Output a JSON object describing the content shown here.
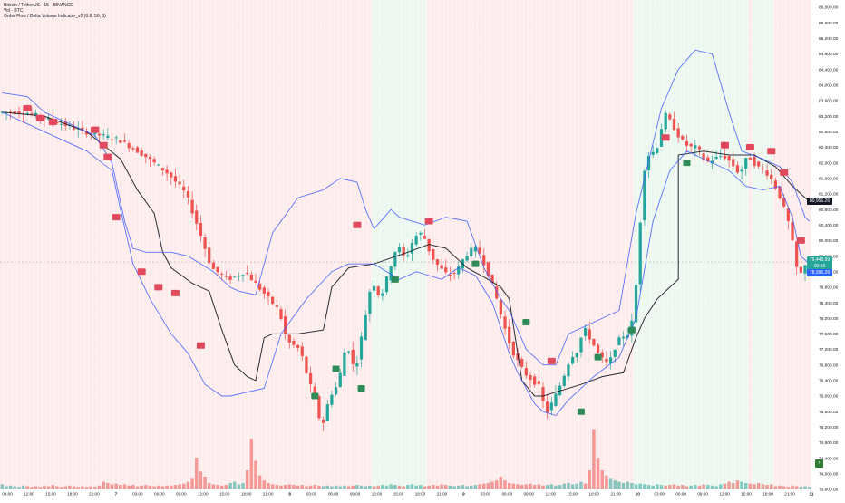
{
  "header": {
    "symbol_line": "Bitcoin / TetherUS · 15 · BINANCE",
    "volume_line": "Vol · BTC",
    "indicator_line": "Order Flow / Delta Volume Indicator_v2 (0.8, 50, 5)"
  },
  "price_tags": {
    "vwap": "80,956.26",
    "last_price": "79,448.99",
    "last_countdown": "00:56",
    "lower_band": "78,996.26"
  },
  "colors": {
    "up": "#26a69a",
    "down": "#ef5350",
    "vwap_line": "#131722",
    "band_line": "#3d5afe",
    "bg_red": "#fde4e4",
    "bg_green": "#e4f4ea",
    "sell_marker": "#e04a5c",
    "buy_marker": "#2e8b57",
    "axis_text": "#131722",
    "grid": "#f0f3fa"
  },
  "chart_data": {
    "type": "candlestick",
    "title": "Bitcoin / TetherUS · 15 · BINANCE",
    "xlabel": "",
    "ylabel": "",
    "y_ticks": [
      "86,000.00",
      "85,600.00",
      "85,200.00",
      "84,800.00",
      "84,400.00",
      "84,000.00",
      "83,600.00",
      "83,200.00",
      "82,800.00",
      "82,400.00",
      "82,000.00",
      "81,600.00",
      "81,200.00",
      "80,800.00",
      "80,400.00",
      "80,000.00",
      "79,600.00",
      "79,200.00",
      "78,800.00",
      "78,400.00",
      "78,000.00",
      "77,600.00",
      "77,200.00",
      "76,800.00",
      "76,400.00",
      "76,000.00",
      "75,600.00",
      "75,200.00",
      "74,800.00",
      "74,400.00",
      "74,000.00",
      "73,600.00"
    ],
    "ylim": [
      73600,
      86000
    ],
    "x_ticks": [
      "09:00",
      "12:00",
      "15:00",
      "18:00",
      "21:00",
      "7",
      "03:00",
      "06:00",
      "09:00",
      "12:00",
      "15:00",
      "18:00",
      "21:00",
      "8",
      "03:00",
      "06:00",
      "09:00",
      "12:00",
      "15:00",
      "18:00",
      "21:00",
      "9",
      "03:00",
      "06:00",
      "09:00",
      "12:00",
      "15:00",
      "18:00",
      "21:00",
      "10",
      "03:00",
      "06:00",
      "09:00",
      "12:00",
      "15:00",
      "18:00",
      "21:00",
      "11"
    ],
    "series": [
      {
        "name": "Price",
        "kind": "close_path",
        "points": [
          [
            0,
            83300
          ],
          [
            6,
            83300
          ],
          [
            12,
            83100
          ],
          [
            20,
            82800
          ],
          [
            28,
            82600
          ],
          [
            34,
            82200
          ],
          [
            40,
            81700
          ],
          [
            44,
            81200
          ],
          [
            47,
            80300
          ],
          [
            50,
            79300
          ],
          [
            54,
            79000
          ],
          [
            58,
            79200
          ],
          [
            62,
            78700
          ],
          [
            66,
            78200
          ],
          [
            68,
            77400
          ],
          [
            71,
            77200
          ],
          [
            73,
            76400
          ],
          [
            75,
            75800
          ],
          [
            76,
            75100
          ],
          [
            78,
            76000
          ],
          [
            80,
            76300
          ],
          [
            82,
            77400
          ],
          [
            84,
            76600
          ],
          [
            86,
            77800
          ],
          [
            88,
            79000
          ],
          [
            90,
            78500
          ],
          [
            92,
            79200
          ],
          [
            94,
            79900
          ],
          [
            96,
            79500
          ],
          [
            98,
            80100
          ],
          [
            100,
            80200
          ],
          [
            102,
            79600
          ],
          [
            104,
            79300
          ],
          [
            106,
            79100
          ],
          [
            108,
            79200
          ],
          [
            110,
            79600
          ],
          [
            112,
            79800
          ],
          [
            113,
            79800
          ],
          [
            115,
            79300
          ],
          [
            117,
            78700
          ],
          [
            119,
            77900
          ],
          [
            121,
            77200
          ],
          [
            123,
            76800
          ],
          [
            124,
            76600
          ],
          [
            126,
            76400
          ],
          [
            128,
            76200
          ],
          [
            129,
            75500
          ],
          [
            131,
            75900
          ],
          [
            133,
            76400
          ],
          [
            135,
            77000
          ],
          [
            137,
            77200
          ],
          [
            138,
            77800
          ],
          [
            140,
            77400
          ],
          [
            142,
            77000
          ],
          [
            144,
            76800
          ],
          [
            146,
            77400
          ],
          [
            148,
            77600
          ],
          [
            149,
            77600
          ],
          [
            150,
            78200
          ],
          [
            151,
            79500
          ],
          [
            152,
            81500
          ],
          [
            153,
            82200
          ],
          [
            154,
            82200
          ],
          [
            156,
            82500
          ],
          [
            157,
            83300
          ],
          [
            159,
            83000
          ],
          [
            161,
            82600
          ],
          [
            163,
            82400
          ],
          [
            165,
            82400
          ],
          [
            167,
            82000
          ],
          [
            169,
            82100
          ],
          [
            171,
            82200
          ],
          [
            173,
            82000
          ],
          [
            175,
            81700
          ],
          [
            177,
            82200
          ],
          [
            179,
            81900
          ],
          [
            181,
            81800
          ],
          [
            183,
            81500
          ],
          [
            185,
            81000
          ],
          [
            187,
            80300
          ],
          [
            188,
            79600
          ],
          [
            189,
            79000
          ],
          [
            190,
            79300
          ],
          [
            191,
            79500
          ]
        ]
      },
      {
        "name": "VWAP",
        "kind": "line",
        "points": [
          [
            0,
            83300
          ],
          [
            10,
            83200
          ],
          [
            20,
            82800
          ],
          [
            28,
            82100
          ],
          [
            32,
            81300
          ],
          [
            36,
            80700
          ],
          [
            38,
            79700
          ],
          [
            40,
            79300
          ],
          [
            45,
            78900
          ],
          [
            49,
            78700
          ],
          [
            52,
            77700
          ],
          [
            55,
            76800
          ],
          [
            58,
            76500
          ],
          [
            60,
            76400
          ],
          [
            62,
            77500
          ],
          [
            64,
            77600
          ],
          [
            70,
            77600
          ],
          [
            76,
            77700
          ],
          [
            78,
            78800
          ],
          [
            82,
            79300
          ],
          [
            88,
            79400
          ],
          [
            96,
            79700
          ],
          [
            101,
            79900
          ],
          [
            105,
            79800
          ],
          [
            110,
            79300
          ],
          [
            115,
            79000
          ],
          [
            118,
            78800
          ],
          [
            120,
            78500
          ],
          [
            123,
            76400
          ],
          [
            126,
            76000
          ],
          [
            128,
            76000
          ],
          [
            131,
            76100
          ],
          [
            137,
            76300
          ],
          [
            142,
            76500
          ],
          [
            147,
            76600
          ],
          [
            150,
            77500
          ],
          [
            152,
            78000
          ],
          [
            155,
            78500
          ],
          [
            160,
            79000
          ],
          [
            160,
            82200
          ],
          [
            166,
            82300
          ],
          [
            172,
            82200
          ],
          [
            178,
            82200
          ],
          [
            183,
            81900
          ],
          [
            187,
            81400
          ],
          [
            191,
            81000
          ]
        ]
      },
      {
        "name": "Upper band",
        "kind": "line",
        "points": [
          [
            0,
            83800
          ],
          [
            6,
            83700
          ],
          [
            10,
            83300
          ],
          [
            16,
            83000
          ],
          [
            22,
            82700
          ],
          [
            26,
            82000
          ],
          [
            29,
            80500
          ],
          [
            31,
            79800
          ],
          [
            34,
            79700
          ],
          [
            40,
            79700
          ],
          [
            44,
            79600
          ],
          [
            50,
            79200
          ],
          [
            54,
            78800
          ],
          [
            56,
            78700
          ],
          [
            60,
            78600
          ],
          [
            64,
            80200
          ],
          [
            70,
            81100
          ],
          [
            76,
            81300
          ],
          [
            80,
            81600
          ],
          [
            84,
            81500
          ],
          [
            86,
            80800
          ],
          [
            88,
            80300
          ],
          [
            92,
            80800
          ],
          [
            94,
            80600
          ],
          [
            100,
            80400
          ],
          [
            105,
            80600
          ],
          [
            110,
            80500
          ],
          [
            114,
            79300
          ],
          [
            118,
            78500
          ],
          [
            120,
            78200
          ],
          [
            124,
            77200
          ],
          [
            128,
            76800
          ],
          [
            131,
            76800
          ],
          [
            134,
            77600
          ],
          [
            140,
            77900
          ],
          [
            146,
            78200
          ],
          [
            150,
            80700
          ],
          [
            156,
            83400
          ],
          [
            160,
            84400
          ],
          [
            164,
            84900
          ],
          [
            168,
            84800
          ],
          [
            172,
            83300
          ],
          [
            175,
            82300
          ],
          [
            180,
            82100
          ],
          [
            184,
            81900
          ],
          [
            187,
            81500
          ],
          [
            190,
            80600
          ],
          [
            191,
            80500
          ]
        ]
      },
      {
        "name": "Lower band",
        "kind": "line",
        "points": [
          [
            0,
            83300
          ],
          [
            10,
            82800
          ],
          [
            20,
            82300
          ],
          [
            26,
            81800
          ],
          [
            28,
            80800
          ],
          [
            31,
            79400
          ],
          [
            35,
            78500
          ],
          [
            40,
            77600
          ],
          [
            44,
            77100
          ],
          [
            48,
            76300
          ],
          [
            52,
            76000
          ],
          [
            54,
            76000
          ],
          [
            58,
            76100
          ],
          [
            62,
            76200
          ],
          [
            66,
            77600
          ],
          [
            72,
            78500
          ],
          [
            78,
            79200
          ],
          [
            82,
            79400
          ],
          [
            88,
            79400
          ],
          [
            94,
            79000
          ],
          [
            98,
            79200
          ],
          [
            104,
            79000
          ],
          [
            108,
            79300
          ],
          [
            112,
            79100
          ],
          [
            116,
            78400
          ],
          [
            120,
            77100
          ],
          [
            122,
            76600
          ],
          [
            126,
            75800
          ],
          [
            128,
            75600
          ],
          [
            131,
            75500
          ],
          [
            134,
            75900
          ],
          [
            140,
            76500
          ],
          [
            146,
            77000
          ],
          [
            150,
            78000
          ],
          [
            154,
            80500
          ],
          [
            158,
            81800
          ],
          [
            162,
            82300
          ],
          [
            168,
            82000
          ],
          [
            172,
            81800
          ],
          [
            176,
            81400
          ],
          [
            180,
            81300
          ],
          [
            184,
            81400
          ],
          [
            187,
            80600
          ],
          [
            189,
            79600
          ],
          [
            191,
            79400
          ]
        ]
      }
    ],
    "sell_markers": [
      [
        6,
        83400
      ],
      [
        9,
        83150
      ],
      [
        12,
        83050
      ],
      [
        22,
        82850
      ],
      [
        24,
        82450
      ],
      [
        25,
        82150
      ],
      [
        27,
        80600
      ],
      [
        33,
        79200
      ],
      [
        37,
        78800
      ],
      [
        41,
        78650
      ],
      [
        47,
        77300
      ],
      [
        84,
        80400
      ],
      [
        101,
        80500
      ],
      [
        130,
        76900
      ],
      [
        157,
        82650
      ],
      [
        171,
        82450
      ],
      [
        177,
        82400
      ],
      [
        182,
        82300
      ],
      [
        185,
        81750
      ],
      [
        189,
        80000
      ]
    ],
    "buy_markers": [
      [
        74,
        76000
      ],
      [
        79,
        76700
      ],
      [
        85,
        76200
      ],
      [
        93,
        79000
      ],
      [
        112,
        79400
      ],
      [
        124,
        77900
      ],
      [
        137,
        75600
      ],
      [
        141,
        77000
      ],
      [
        149,
        77700
      ],
      [
        162,
        82000
      ]
    ],
    "volume": {
      "note": "relative volume heights (0-1)",
      "values": [
        0.08,
        0.05,
        0.06,
        0.05,
        0.04,
        0.06,
        0.05,
        0.04,
        0.05,
        0.04,
        0.06,
        0.05,
        0.07,
        0.05,
        0.04,
        0.05,
        0.06,
        0.05,
        0.04,
        0.05,
        0.04,
        0.05,
        0.04,
        0.06,
        0.12,
        0.1,
        0.08,
        0.09,
        0.07,
        0.08,
        0.06,
        0.07,
        0.05,
        0.06,
        0.07,
        0.06,
        0.05,
        0.06,
        0.05,
        0.06,
        0.06,
        0.07,
        0.08,
        0.09,
        0.12,
        0.18,
        0.5,
        0.28,
        0.2,
        0.1,
        0.08,
        0.07,
        0.06,
        0.07,
        0.1,
        0.12,
        0.08,
        0.1,
        0.3,
        0.8,
        0.45,
        0.22,
        0.14,
        0.1,
        0.08,
        0.07,
        0.06,
        0.07,
        0.08,
        0.07,
        0.06,
        0.07,
        0.05,
        0.06,
        0.07,
        0.06,
        0.05,
        0.06,
        0.05,
        0.06,
        0.05,
        0.06,
        0.05,
        0.06,
        0.07,
        0.06,
        0.05,
        0.06,
        0.05,
        0.06,
        0.07,
        0.06,
        0.08,
        0.07,
        0.06,
        0.05,
        0.07,
        0.08,
        0.06,
        0.07,
        0.05,
        0.06,
        0.07,
        0.06,
        0.08,
        0.07,
        0.06,
        0.05,
        0.06,
        0.07,
        0.05,
        0.06,
        0.07,
        0.08,
        0.09,
        0.1,
        0.12,
        0.14,
        0.2,
        0.14,
        0.1,
        0.09,
        0.08,
        0.07,
        0.08,
        0.09,
        0.07,
        0.08,
        0.06,
        0.07,
        0.08,
        0.06,
        0.07,
        0.09,
        0.1,
        0.08,
        0.09,
        0.12,
        0.09,
        0.3,
        0.95,
        0.5,
        0.3,
        0.22,
        0.18,
        0.14,
        0.12,
        0.1,
        0.12,
        0.1,
        0.08,
        0.09,
        0.08,
        0.07,
        0.06,
        0.08,
        0.07,
        0.06,
        0.07,
        0.08,
        0.06,
        0.07,
        0.05,
        0.06,
        0.07,
        0.06,
        0.08,
        0.07,
        0.06,
        0.05,
        0.08,
        0.09,
        0.12,
        0.1,
        0.14,
        0.12,
        0.1,
        0.09,
        0.08,
        0.1,
        0.08,
        0.07
      ]
    },
    "grid": true,
    "legend": "top-left"
  }
}
